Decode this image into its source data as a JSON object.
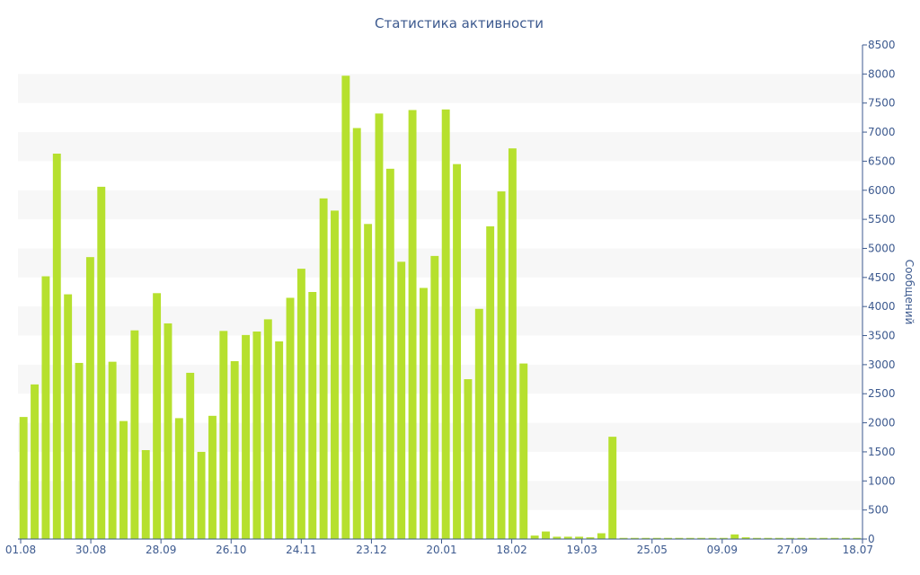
{
  "chart_data": {
    "type": "bar",
    "title": "Статистика активности",
    "xlabel": "",
    "ylabel": "Сообщений",
    "x_tick_labels": [
      "01.08",
      "30.08",
      "28.09",
      "26.10",
      "24.11",
      "23.12",
      "20.01",
      "18.02",
      "19.03",
      "25.05",
      "09.09",
      "27.09",
      "18.07"
    ],
    "y_tick_labels": [
      "0",
      "500",
      "1000",
      "1500",
      "2000",
      "2500",
      "3000",
      "3500",
      "4000",
      "4500",
      "5000",
      "5500",
      "6000",
      "6500",
      "7000",
      "7500",
      "8000",
      "8500"
    ],
    "ylim": [
      0,
      8500
    ],
    "y_axis_side": "right",
    "grid": "alternating horizontal bands",
    "bar_color": "#b6e02e",
    "text_color": "#3d5a8f",
    "values": [
      2100,
      2660,
      4520,
      6630,
      4210,
      3030,
      4850,
      6060,
      3050,
      2030,
      3590,
      1530,
      4230,
      3710,
      2080,
      2860,
      1500,
      2120,
      3580,
      3060,
      3510,
      3570,
      3780,
      3400,
      4150,
      4650,
      4250,
      5860,
      5650,
      7970,
      7070,
      5420,
      7320,
      6370,
      4770,
      7380,
      4320,
      4870,
      7390,
      6450,
      2750,
      3960,
      5380,
      5980,
      6720,
      3020,
      60,
      130,
      40,
      40,
      40,
      30,
      100,
      1760,
      20,
      20,
      20,
      20,
      20,
      20,
      20,
      20,
      20,
      20,
      80,
      30,
      20,
      20,
      20,
      20,
      20,
      20,
      20,
      20,
      20,
      20
    ]
  }
}
